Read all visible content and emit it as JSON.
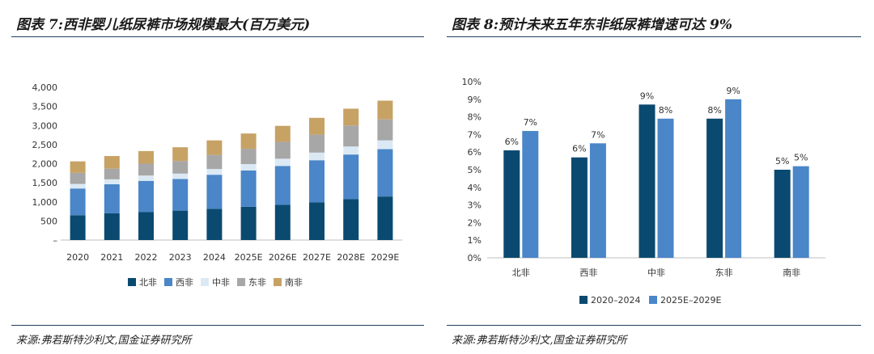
{
  "colors": {
    "north": "#0b4a70",
    "west": "#4a86c8",
    "central": "#dbe9f5",
    "east": "#a7a7a7",
    "south": "#c7a265",
    "bar_dark": "#0b4a70",
    "bar_light": "#4a86c8"
  },
  "left": {
    "title": "图表 7:西非婴儿纸尿裤市场规模最大(百万美元)",
    "source": "来源:弗若斯特沙利文,国金证券研究所"
  },
  "right": {
    "title": "图表 8:预计未来五年东非纸尿裤增速可达 9%",
    "source": "来源:弗若斯特沙利文,国金证券研究所"
  },
  "chart_data": [
    {
      "type": "bar",
      "stacked": true,
      "title": "西非婴儿纸尿裤市场规模最大(百万美元)",
      "categories": [
        "2020",
        "2021",
        "2022",
        "2023",
        "2024",
        "2025E",
        "2026E",
        "2027E",
        "2028E",
        "2029E"
      ],
      "series": [
        {
          "name": "北非",
          "color_key": "north",
          "values": [
            650,
            700,
            730,
            770,
            820,
            870,
            920,
            990,
            1070,
            1140
          ]
        },
        {
          "name": "西非",
          "color_key": "west",
          "values": [
            700,
            760,
            820,
            830,
            890,
            950,
            1020,
            1100,
            1170,
            1240
          ]
        },
        {
          "name": "中非",
          "color_key": "central",
          "values": [
            120,
            130,
            140,
            140,
            150,
            170,
            190,
            200,
            210,
            230
          ]
        },
        {
          "name": "东非",
          "color_key": "east",
          "values": [
            290,
            280,
            310,
            330,
            370,
            400,
            440,
            470,
            550,
            550
          ]
        },
        {
          "name": "南非",
          "color_key": "south",
          "values": [
            300,
            330,
            330,
            360,
            380,
            400,
            420,
            440,
            440,
            490
          ]
        }
      ],
      "yticks": [
        "–",
        "500",
        "1,000",
        "1,500",
        "2,000",
        "2,500",
        "3,000",
        "3,500",
        "4,000"
      ],
      "ylim": [
        0,
        4000
      ],
      "xlabel": "",
      "ylabel": "",
      "legend": "bottom"
    },
    {
      "type": "bar",
      "stacked": false,
      "title": "预计未来五年东非纸尿裤增速可达 9%",
      "categories": [
        "北非",
        "西非",
        "中非",
        "东非",
        "南非"
      ],
      "series": [
        {
          "name": "2020–2024",
          "color_key": "bar_dark",
          "values": [
            6.1,
            5.7,
            8.7,
            7.9,
            5.0
          ],
          "labels": [
            "6%",
            "6%",
            "9%",
            "8%",
            "5%"
          ]
        },
        {
          "name": "2025E–2029E",
          "color_key": "bar_light",
          "values": [
            7.2,
            6.5,
            7.9,
            9.0,
            5.2
          ],
          "labels": [
            "7%",
            "7%",
            "8%",
            "9%",
            "5%"
          ]
        }
      ],
      "yticks": [
        "0%",
        "1%",
        "2%",
        "3%",
        "4%",
        "5%",
        "6%",
        "7%",
        "8%",
        "9%",
        "10%"
      ],
      "ylim": [
        0,
        10
      ],
      "xlabel": "",
      "ylabel": "",
      "legend": "bottom"
    }
  ]
}
